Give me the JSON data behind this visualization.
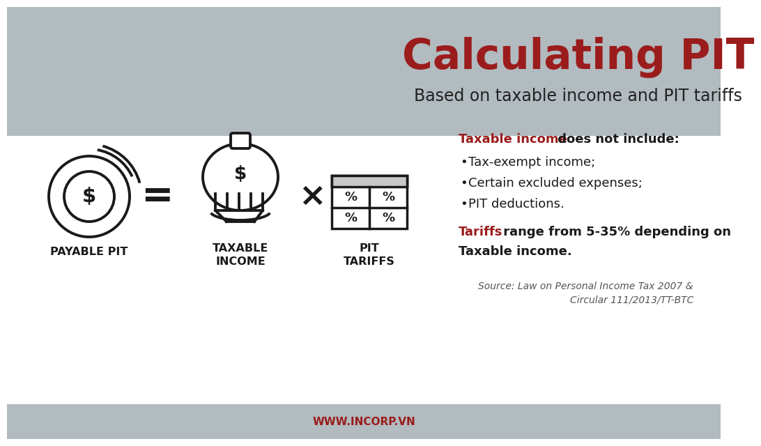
{
  "title": "Calculating PIT",
  "subtitle": "Based on taxable income and PIT tariffs",
  "header_bg": "#b2bbbf",
  "footer_bg": "#b2bbbf",
  "body_bg": "#ffffff",
  "title_color": "#9b1c1c",
  "subtitle_color": "#222222",
  "red_color": "#9b1c1c",
  "black_color": "#1a1a1a",
  "gray_color": "#555555",
  "label1": "PAYABLE PIT",
  "label2": "TAXABLE\nINCOME",
  "label3": "PIT\nTARIFFS",
  "text_highlight1": "Taxable income",
  "text_body1": " does not include:",
  "bullet1": "Tax-exempt income;",
  "bullet2": "Certain excluded expenses;",
  "bullet3": "PIT deductions.",
  "text_highlight2": "Tariffs",
  "text_body2": " range from 5-35% depending on",
  "text_body2b": "Taxable income.",
  "source_line1": "Source: Law on Personal Income Tax 2007 &",
  "source_line2": "Circular 111/2013/TT-BTC",
  "footer_text": "WWW.INCORP.VN",
  "footer_text_color": "#9b1c1c"
}
